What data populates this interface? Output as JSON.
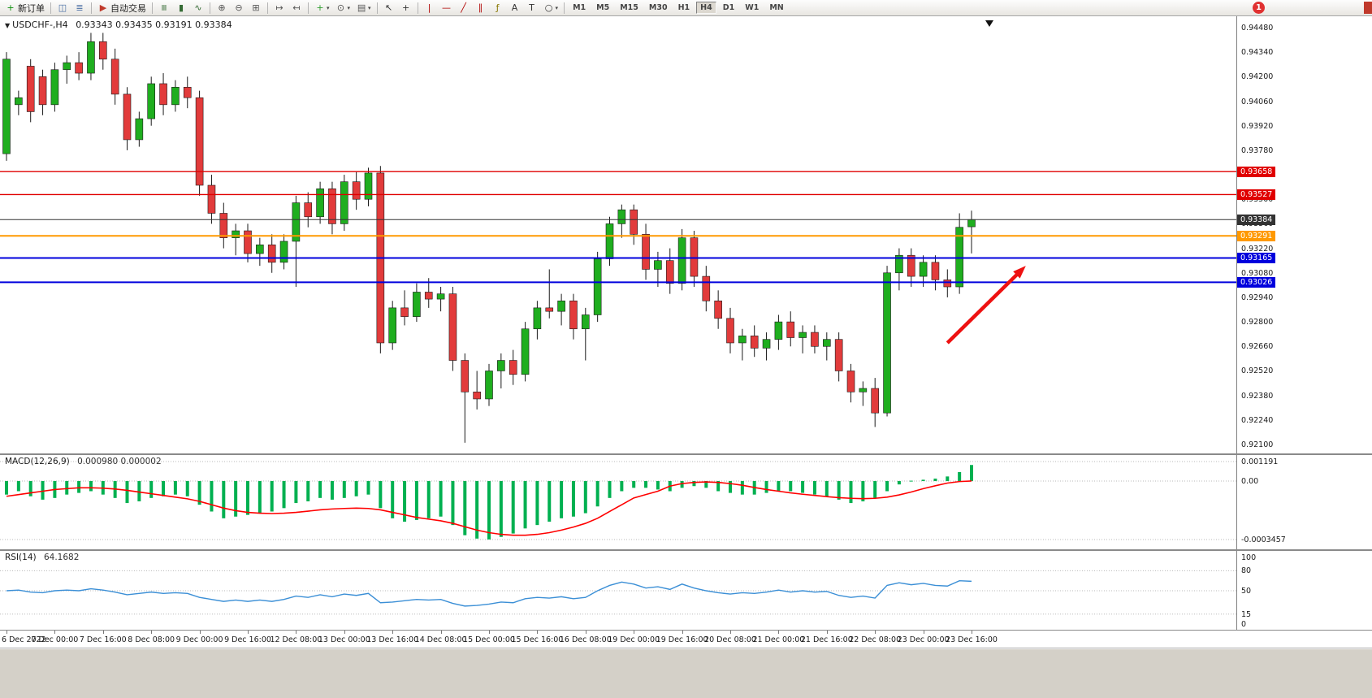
{
  "window": {
    "badge": "1"
  },
  "icons": {
    "chart_menu": "▼",
    "caret": "▾"
  },
  "toolbar": {
    "buttons": [
      {
        "name": "new-order",
        "glyph": "+",
        "color": "#0a8f0a",
        "label": "新订单"
      },
      {
        "name": "charts-window",
        "glyph": "◫",
        "color": "#4a6fa5",
        "sep": true
      },
      {
        "name": "market-watch",
        "glyph": "≣",
        "color": "#4a6fa5"
      },
      {
        "name": "autotrading",
        "glyph": "▶",
        "color": "#c03a2b",
        "label": "自动交易",
        "sep": true
      },
      {
        "name": "bar-chart",
        "glyph": "≡",
        "rot": true,
        "color": "#356b35",
        "sep": true
      },
      {
        "name": "candlestick-chart",
        "glyph": "▮",
        "color": "#356b35"
      },
      {
        "name": "line-chart",
        "glyph": "∿",
        "color": "#356b35"
      },
      {
        "name": "zoom-in",
        "glyph": "⊕",
        "color": "#555",
        "sep": true
      },
      {
        "name": "zoom-out",
        "glyph": "⊖",
        "color": "#555"
      },
      {
        "name": "tile-windows",
        "glyph": "⊞",
        "color": "#555"
      },
      {
        "name": "auto-scroll",
        "glyph": "↦",
        "color": "#555",
        "sep": true
      },
      {
        "name": "chart-shift",
        "glyph": "↤",
        "color": "#555"
      },
      {
        "name": "indicators",
        "glyph": "+",
        "color": "#2f9e2f",
        "sep": true,
        "caret": true
      },
      {
        "name": "periods",
        "glyph": "⊙",
        "color": "#555",
        "caret": true
      },
      {
        "name": "templates",
        "glyph": "▤",
        "color": "#555",
        "caret": true
      },
      {
        "name": "cursor",
        "glyph": "↖",
        "color": "#333",
        "sep": true
      },
      {
        "name": "crosshair",
        "glyph": "+",
        "color": "#333"
      },
      {
        "name": "vertical-line",
        "glyph": "|",
        "color": "#b00000",
        "sep": true
      },
      {
        "name": "horizontal-line",
        "glyph": "—",
        "color": "#b00000"
      },
      {
        "name": "trendline",
        "glyph": "╱",
        "color": "#b00000"
      },
      {
        "name": "equidistant-channel",
        "glyph": "∥",
        "color": "#b00000"
      },
      {
        "name": "fibonacci",
        "glyph": "ƒ",
        "color": "#887700"
      },
      {
        "name": "text",
        "glyph": "A",
        "color": "#333"
      },
      {
        "name": "text-label",
        "glyph": "T",
        "color": "#333"
      },
      {
        "name": "arrows",
        "glyph": "○",
        "color": "#333",
        "caret": true
      }
    ],
    "timeframes": [
      "M1",
      "M5",
      "M15",
      "M30",
      "H1",
      "H4",
      "D1",
      "W1",
      "MN"
    ],
    "active_timeframe": "H4"
  },
  "chart": {
    "title": "USDCHF-,H4",
    "ohlc": "0.93343 0.93435 0.93191 0.93384",
    "colors": {
      "up": "#1fae1f",
      "down": "#e23b3b",
      "wick": "#1a1a1a"
    }
  },
  "chart_data": [
    {
      "type": "candlestick",
      "symbol": "USDCHF-",
      "period": "H4",
      "ylim": [
        0.921,
        0.9448
      ],
      "y_ticks": [
        "0.94480",
        "0.94340",
        "0.94200",
        "0.94060",
        "0.93920",
        "0.93780",
        "0.93640",
        "0.93500",
        "0.93360",
        "0.93220",
        "0.93080",
        "0.92940",
        "0.92800",
        "0.92660",
        "0.92520",
        "0.92380",
        "0.92240",
        "0.92100"
      ],
      "x_labels": [
        "6 Dec 2022",
        "7 Dec 00:00",
        "7 Dec 16:00",
        "8 Dec 08:00",
        "9 Dec 00:00",
        "9 Dec 16:00",
        "12 Dec 08:00",
        "13 Dec 00:00",
        "13 Dec 16:00",
        "14 Dec 08:00",
        "15 Dec 00:00",
        "15 Dec 16:00",
        "16 Dec 08:00",
        "19 Dec 00:00",
        "19 Dec 16:00",
        "20 Dec 08:00",
        "21 Dec 00:00",
        "21 Dec 16:00",
        "22 Dec 08:00",
        "23 Dec 00:00",
        "23 Dec 16:00"
      ],
      "candles": [
        [
          0.9376,
          0.9434,
          0.9372,
          0.943
        ],
        [
          0.9404,
          0.9412,
          0.9398,
          0.9408
        ],
        [
          0.9426,
          0.943,
          0.9394,
          0.94
        ],
        [
          0.942,
          0.9424,
          0.9398,
          0.9404
        ],
        [
          0.9404,
          0.9428,
          0.94,
          0.9424
        ],
        [
          0.9424,
          0.9432,
          0.9416,
          0.9428
        ],
        [
          0.9428,
          0.9434,
          0.9418,
          0.9422
        ],
        [
          0.9422,
          0.9445,
          0.9418,
          0.944
        ],
        [
          0.944,
          0.9445,
          0.9424,
          0.943
        ],
        [
          0.943,
          0.9436,
          0.9404,
          0.941
        ],
        [
          0.941,
          0.9414,
          0.9378,
          0.9384
        ],
        [
          0.9384,
          0.94,
          0.938,
          0.9396
        ],
        [
          0.9396,
          0.942,
          0.9392,
          0.9416
        ],
        [
          0.9416,
          0.9422,
          0.9398,
          0.9404
        ],
        [
          0.9404,
          0.9418,
          0.94,
          0.9414
        ],
        [
          0.9414,
          0.942,
          0.9402,
          0.9408
        ],
        [
          0.9408,
          0.9412,
          0.9352,
          0.9358
        ],
        [
          0.9358,
          0.9364,
          0.9336,
          0.9342
        ],
        [
          0.9342,
          0.9348,
          0.9322,
          0.9328
        ],
        [
          0.9328,
          0.9336,
          0.9318,
          0.9332
        ],
        [
          0.9332,
          0.9336,
          0.9314,
          0.9319
        ],
        [
          0.9319,
          0.9328,
          0.9312,
          0.9324
        ],
        [
          0.9324,
          0.933,
          0.9308,
          0.9314
        ],
        [
          0.9314,
          0.933,
          0.931,
          0.9326
        ],
        [
          0.9326,
          0.9352,
          0.93,
          0.9348
        ],
        [
          0.9348,
          0.9354,
          0.9334,
          0.934
        ],
        [
          0.934,
          0.936,
          0.9336,
          0.9356
        ],
        [
          0.9356,
          0.936,
          0.933,
          0.9336
        ],
        [
          0.9336,
          0.9364,
          0.9332,
          0.936
        ],
        [
          0.936,
          0.9366,
          0.9344,
          0.935
        ],
        [
          0.935,
          0.9368,
          0.9346,
          0.9365
        ],
        [
          0.9365,
          0.9369,
          0.9262,
          0.9268
        ],
        [
          0.9268,
          0.9292,
          0.9264,
          0.9288
        ],
        [
          0.9288,
          0.9298,
          0.9278,
          0.9283
        ],
        [
          0.9283,
          0.9302,
          0.928,
          0.9297
        ],
        [
          0.9297,
          0.9305,
          0.9288,
          0.9293
        ],
        [
          0.9293,
          0.93,
          0.9286,
          0.9296
        ],
        [
          0.9296,
          0.93,
          0.9252,
          0.9258
        ],
        [
          0.9258,
          0.9262,
          0.9211,
          0.924
        ],
        [
          0.924,
          0.9252,
          0.923,
          0.9236
        ],
        [
          0.9236,
          0.9256,
          0.9232,
          0.9252
        ],
        [
          0.9252,
          0.9262,
          0.9242,
          0.9258
        ],
        [
          0.9258,
          0.9264,
          0.9244,
          0.925
        ],
        [
          0.925,
          0.928,
          0.9246,
          0.9276
        ],
        [
          0.9276,
          0.9292,
          0.927,
          0.9288
        ],
        [
          0.9288,
          0.931,
          0.9282,
          0.9286
        ],
        [
          0.9286,
          0.9296,
          0.9278,
          0.9292
        ],
        [
          0.9292,
          0.9296,
          0.927,
          0.9276
        ],
        [
          0.9276,
          0.9288,
          0.9258,
          0.9284
        ],
        [
          0.9284,
          0.932,
          0.928,
          0.9316
        ],
        [
          0.9316,
          0.934,
          0.9312,
          0.9336
        ],
        [
          0.9336,
          0.9347,
          0.9328,
          0.9344
        ],
        [
          0.9344,
          0.9347,
          0.9324,
          0.933
        ],
        [
          0.933,
          0.9336,
          0.9304,
          0.931
        ],
        [
          0.931,
          0.932,
          0.93,
          0.9315
        ],
        [
          0.9315,
          0.9322,
          0.9296,
          0.9302
        ],
        [
          0.9302,
          0.9333,
          0.9298,
          0.9328
        ],
        [
          0.9328,
          0.9332,
          0.93,
          0.9306
        ],
        [
          0.9306,
          0.9312,
          0.9286,
          0.9292
        ],
        [
          0.9292,
          0.9298,
          0.9276,
          0.9282
        ],
        [
          0.9282,
          0.9288,
          0.9262,
          0.9268
        ],
        [
          0.9268,
          0.9276,
          0.9258,
          0.9272
        ],
        [
          0.9272,
          0.9278,
          0.926,
          0.9265
        ],
        [
          0.9265,
          0.9274,
          0.9258,
          0.927
        ],
        [
          0.927,
          0.9284,
          0.9264,
          0.928
        ],
        [
          0.928,
          0.9286,
          0.9266,
          0.9271
        ],
        [
          0.9271,
          0.9278,
          0.9262,
          0.9274
        ],
        [
          0.9274,
          0.9278,
          0.9262,
          0.9266
        ],
        [
          0.9266,
          0.9274,
          0.9258,
          0.927
        ],
        [
          0.927,
          0.9274,
          0.9246,
          0.9252
        ],
        [
          0.9252,
          0.9256,
          0.9234,
          0.924
        ],
        [
          0.924,
          0.9246,
          0.9232,
          0.9242
        ],
        [
          0.9242,
          0.9248,
          0.922,
          0.9228
        ],
        [
          0.9228,
          0.9312,
          0.9226,
          0.9308
        ],
        [
          0.9308,
          0.9322,
          0.9298,
          0.9318
        ],
        [
          0.9318,
          0.9322,
          0.93,
          0.9306
        ],
        [
          0.9306,
          0.9318,
          0.93,
          0.9314
        ],
        [
          0.9314,
          0.9318,
          0.9298,
          0.9304
        ],
        [
          0.9304,
          0.931,
          0.9294,
          0.93
        ],
        [
          0.93,
          0.9342,
          0.9296,
          0.9334
        ],
        [
          0.93343,
          0.93435,
          0.93191,
          0.93384
        ]
      ],
      "hlines": [
        {
          "price": 0.93658,
          "label": "0.93658",
          "color": "#e00000",
          "width": 1.4
        },
        {
          "price": 0.93527,
          "label": "0.93527",
          "color": "#e00000",
          "width": 1.4
        },
        {
          "price": 0.93384,
          "label": "0.93384",
          "color": "#333333",
          "width": 1
        },
        {
          "price": 0.93291,
          "label": "0.93291",
          "color": "#ff9900",
          "width": 2
        },
        {
          "price": 0.93165,
          "label": "0.93165",
          "color": "#0000dd",
          "width": 2
        },
        {
          "price": 0.93026,
          "label": "0.93026",
          "color": "#0000dd",
          "width": 2
        }
      ],
      "arrow": {
        "from": {
          "i": 78,
          "price": 0.9268
        },
        "to": {
          "i": 84.5,
          "price": 0.9312
        },
        "color": "#ee1111"
      }
    },
    {
      "type": "bar",
      "label": "MACD(12,26,9)",
      "values_display": "0.000980 0.000002",
      "y_ticks": [
        "0.001191",
        "0.00",
        "-0.0003457"
      ],
      "colors": {
        "histogram": "#00b050",
        "signal": "#ff0000"
      },
      "histogram": [
        -8e-05,
        -6e-05,
        -9e-05,
        -0.00011,
        -0.0001,
        -8e-05,
        -7e-05,
        -6e-05,
        -8e-05,
        -0.0001,
        -0.00013,
        -0.00012,
        -0.0001,
        -9e-05,
        -8e-05,
        -9e-05,
        -0.00014,
        -0.00018,
        -0.00022,
        -0.00021,
        -0.0002,
        -0.00019,
        -0.00018,
        -0.00016,
        -0.00013,
        -0.00012,
        -0.0001,
        -0.00011,
        -0.0001,
        -9e-05,
        -8e-05,
        -0.00016,
        -0.00022,
        -0.00024,
        -0.00023,
        -0.00022,
        -0.00021,
        -0.00026,
        -0.00032,
        -0.00034,
        -0.000345,
        -0.00033,
        -0.00031,
        -0.00028,
        -0.00026,
        -0.00024,
        -0.00022,
        -0.00021,
        -0.00019,
        -0.00015,
        -0.0001,
        -6e-05,
        -4e-05,
        -4e-05,
        -5e-05,
        -6e-05,
        -4e-05,
        -3e-05,
        -4e-05,
        -6e-05,
        -7e-05,
        -8e-05,
        -8e-05,
        -7e-05,
        -6e-05,
        -6e-05,
        -7e-05,
        -8e-05,
        -9e-05,
        -0.00011,
        -0.00013,
        -0.00012,
        -0.0001,
        -6e-05,
        -2e-05,
        2e-05,
        8e-05,
        0.00015,
        0.00028,
        0.00055,
        0.00098
      ],
      "signal": [
        -9e-05,
        -8e-05,
        -7e-05,
        -6e-05,
        -5e-05,
        -4.5e-05,
        -4e-05,
        -4e-05,
        -4.2e-05,
        -4.7e-05,
        -5.5e-05,
        -6.5e-05,
        -7.5e-05,
        -8.5e-05,
        -9.5e-05,
        -0.000105,
        -0.00012,
        -0.00014,
        -0.00016,
        -0.000175,
        -0.000185,
        -0.00019,
        -0.000192,
        -0.00019,
        -0.000185,
        -0.000178,
        -0.00017,
        -0.000165,
        -0.000162,
        -0.00016,
        -0.000162,
        -0.00017,
        -0.000185,
        -0.0002,
        -0.000215,
        -0.000225,
        -0.000235,
        -0.00025,
        -0.00027,
        -0.00029,
        -0.000305,
        -0.000315,
        -0.00032,
        -0.00032,
        -0.000315,
        -0.000305,
        -0.00029,
        -0.000272,
        -0.00025,
        -0.00022,
        -0.00018,
        -0.00014,
        -0.0001,
        -8e-05,
        -6e-05,
        -3e-05,
        -1.5e-05,
        -8e-06,
        -5e-06,
        -8e-06,
        -1.5e-05,
        -2.5e-05,
        -3.8e-05,
        -5e-05,
        -6e-05,
        -7e-05,
        -7.8e-05,
        -8.5e-05,
        -9.2e-05,
        -9.8e-05,
        -0.000102,
        -0.000104,
        -0.000102,
        -9.5e-05,
        -8.2e-05,
        -6.5e-05,
        -4.5e-05,
        -2.8e-05,
        -1.2e-05,
        -3e-06,
        2e-06
      ]
    },
    {
      "type": "line",
      "label": "RSI(14)",
      "value_display": "64.1682",
      "color": "#3b8fd6",
      "y_ticks": [
        "100",
        "80",
        "50",
        "15",
        "0"
      ],
      "levels": [
        80,
        50,
        15
      ],
      "values": [
        50,
        51,
        48,
        47,
        50,
        51,
        50,
        53,
        51,
        48,
        44,
        46,
        48,
        46,
        47,
        46,
        40,
        37,
        34,
        36,
        34,
        36,
        34,
        37,
        42,
        40,
        44,
        41,
        45,
        43,
        46,
        32,
        33,
        35,
        37,
        36,
        37,
        31,
        27,
        28,
        30,
        33,
        32,
        38,
        40,
        39,
        41,
        38,
        40,
        50,
        58,
        63,
        60,
        54,
        56,
        52,
        60,
        54,
        50,
        47,
        45,
        47,
        46,
        48,
        51,
        48,
        50,
        48,
        49,
        43,
        40,
        42,
        39,
        58,
        62,
        59,
        61,
        58,
        57,
        65,
        64.17
      ]
    }
  ]
}
